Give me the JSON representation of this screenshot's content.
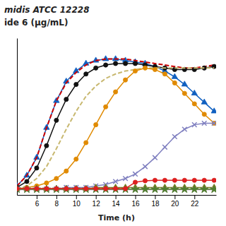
{
  "chart_data": {
    "type": "line",
    "title": "midis ATCC 12228",
    "subtitle": "ide 6 (μg/mL)",
    "x_label": "Time (h)",
    "x": [
      4,
      5,
      6,
      7,
      8,
      9,
      10,
      11,
      12,
      13,
      14,
      15,
      16,
      17,
      18,
      19,
      20,
      21,
      22,
      23,
      24
    ],
    "xlim": [
      4.0,
      24.2
    ],
    "xticks": [
      6,
      8,
      10,
      12,
      14,
      16,
      18,
      20,
      22
    ],
    "ylim": [
      -0.03,
      1.02
    ],
    "tick_labels": "x",
    "grid": false,
    "series": [
      {
        "color": "#1060C0",
        "marker": "triangle",
        "line_style": "solid",
        "values": [
          0.03,
          0.1,
          0.22,
          0.42,
          0.6,
          0.73,
          0.8,
          0.85,
          0.87,
          0.88,
          0.88,
          0.87,
          0.86,
          0.85,
          0.83,
          0.8,
          0.76,
          0.71,
          0.65,
          0.59,
          0.53
        ]
      },
      {
        "color": "#CC0000",
        "marker": "none",
        "line_style": "dashed",
        "values": [
          0.03,
          0.1,
          0.22,
          0.42,
          0.6,
          0.72,
          0.79,
          0.84,
          0.87,
          0.88,
          0.88,
          0.88,
          0.87,
          0.86,
          0.85,
          0.84,
          0.83,
          0.82,
          0.82,
          0.83,
          0.84
        ]
      },
      {
        "color": "#111111",
        "marker": "circle",
        "line_style": "solid",
        "values": [
          0.02,
          0.06,
          0.15,
          0.3,
          0.47,
          0.61,
          0.71,
          0.78,
          0.82,
          0.84,
          0.85,
          0.85,
          0.85,
          0.84,
          0.83,
          0.82,
          0.81,
          0.81,
          0.81,
          0.82,
          0.83
        ]
      },
      {
        "color": "#C8B870",
        "marker": "none",
        "line_style": "dashed",
        "values": [
          0.01,
          0.03,
          0.08,
          0.16,
          0.28,
          0.41,
          0.53,
          0.63,
          0.7,
          0.75,
          0.78,
          0.8,
          0.81,
          0.82,
          0.82,
          0.82,
          0.82,
          0.82,
          0.82,
          0.82,
          0.82
        ]
      },
      {
        "color": "#E08A00",
        "marker": "circle",
        "line_style": "solid",
        "values": [
          0.01,
          0.02,
          0.03,
          0.05,
          0.08,
          0.13,
          0.21,
          0.32,
          0.44,
          0.56,
          0.66,
          0.74,
          0.8,
          0.82,
          0.81,
          0.78,
          0.72,
          0.65,
          0.58,
          0.51,
          0.45
        ]
      },
      {
        "color": "#8080C0",
        "marker": "x",
        "line_style": "solid",
        "values": [
          0.01,
          0.01,
          0.01,
          0.01,
          0.01,
          0.02,
          0.02,
          0.02,
          0.03,
          0.04,
          0.06,
          0.08,
          0.11,
          0.16,
          0.22,
          0.29,
          0.36,
          0.41,
          0.44,
          0.45,
          0.45
        ]
      },
      {
        "color": "#808020",
        "marker": "triangle",
        "line_style": "solid",
        "values": [
          0.01,
          0.01,
          0.01,
          0.01,
          0.01,
          0.01,
          0.01,
          0.01,
          0.02,
          0.02,
          0.02,
          0.02,
          0.02,
          0.02,
          0.02,
          0.02,
          0.02,
          0.02,
          0.02,
          0.02,
          0.02
        ]
      },
      {
        "color": "#C080C0",
        "marker": "x",
        "line_style": "solid",
        "values": [
          0.005,
          0.005,
          0.005,
          0.005,
          0.005,
          0.005,
          0.005,
          0.005,
          0.005,
          0.005,
          0.005,
          0.005,
          0.005,
          0.005,
          0.005,
          0.005,
          0.005,
          0.005,
          0.005,
          0.005,
          0.005
        ]
      },
      {
        "color": "#508030",
        "marker": "star",
        "line_style": "solid",
        "values": [
          0.008,
          0.008,
          0.008,
          0.008,
          0.008,
          0.008,
          0.008,
          0.008,
          0.008,
          0.008,
          0.008,
          0.008,
          0.008,
          0.008,
          0.008,
          0.008,
          0.008,
          0.008,
          0.008,
          0.008,
          0.008
        ]
      },
      {
        "color": "#DD2020",
        "marker": "circle",
        "line_style": "solid",
        "values": [
          0.012,
          0.012,
          0.012,
          0.012,
          0.012,
          0.012,
          0.012,
          0.012,
          0.012,
          0.012,
          0.012,
          0.012,
          0.055,
          0.065,
          0.068,
          0.068,
          0.068,
          0.068,
          0.068,
          0.068,
          0.068
        ]
      }
    ]
  }
}
